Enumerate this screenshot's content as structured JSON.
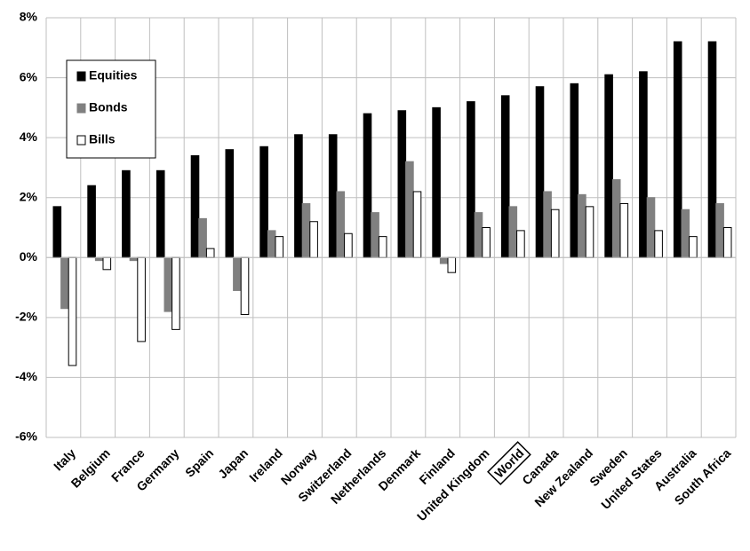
{
  "chart_data": {
    "type": "bar",
    "categories": [
      "Italy",
      "Belgium",
      "France",
      "Germany",
      "Spain",
      "Japan",
      "Ireland",
      "Norway",
      "Switzerland",
      "Netherlands",
      "Denmark",
      "Finland",
      "United Kingdom",
      "World",
      "Canada",
      "New Zealand",
      "Sweden",
      "United States",
      "Australia",
      "South Africa"
    ],
    "series": [
      {
        "name": "Equities",
        "color": "#000000",
        "values": [
          1.7,
          2.4,
          2.9,
          2.9,
          3.4,
          3.6,
          3.7,
          4.1,
          4.1,
          4.8,
          4.9,
          5.0,
          5.2,
          5.4,
          5.7,
          5.8,
          6.1,
          6.2,
          7.2,
          7.2
        ]
      },
      {
        "name": "Bonds",
        "color": "#808080",
        "values": [
          -1.7,
          -0.1,
          -0.1,
          -1.8,
          1.3,
          -1.1,
          0.9,
          1.8,
          2.2,
          1.5,
          3.2,
          -0.2,
          1.5,
          1.7,
          2.2,
          2.1,
          2.6,
          2.0,
          1.6,
          1.8
        ]
      },
      {
        "name": "Bills",
        "color": "#ffffff",
        "values": [
          -3.6,
          -0.4,
          -2.8,
          -2.4,
          0.3,
          -1.9,
          0.7,
          1.2,
          0.8,
          0.7,
          2.2,
          -0.5,
          1.0,
          0.9,
          1.6,
          1.7,
          1.8,
          0.9,
          0.7,
          1.0
        ]
      }
    ],
    "ylim": [
      -6,
      8
    ],
    "yticks": [
      {
        "value": -6,
        "label": "-6%"
      },
      {
        "value": -4,
        "label": "-4%"
      },
      {
        "value": -2,
        "label": "-2%"
      },
      {
        "value": 0,
        "label": "0%"
      },
      {
        "value": 2,
        "label": "2%"
      },
      {
        "value": 4,
        "label": "4%"
      },
      {
        "value": 6,
        "label": "6%"
      },
      {
        "value": 8,
        "label": "8%"
      }
    ],
    "grid": true,
    "legend": "upper-left",
    "boxed_category_index": 13
  }
}
